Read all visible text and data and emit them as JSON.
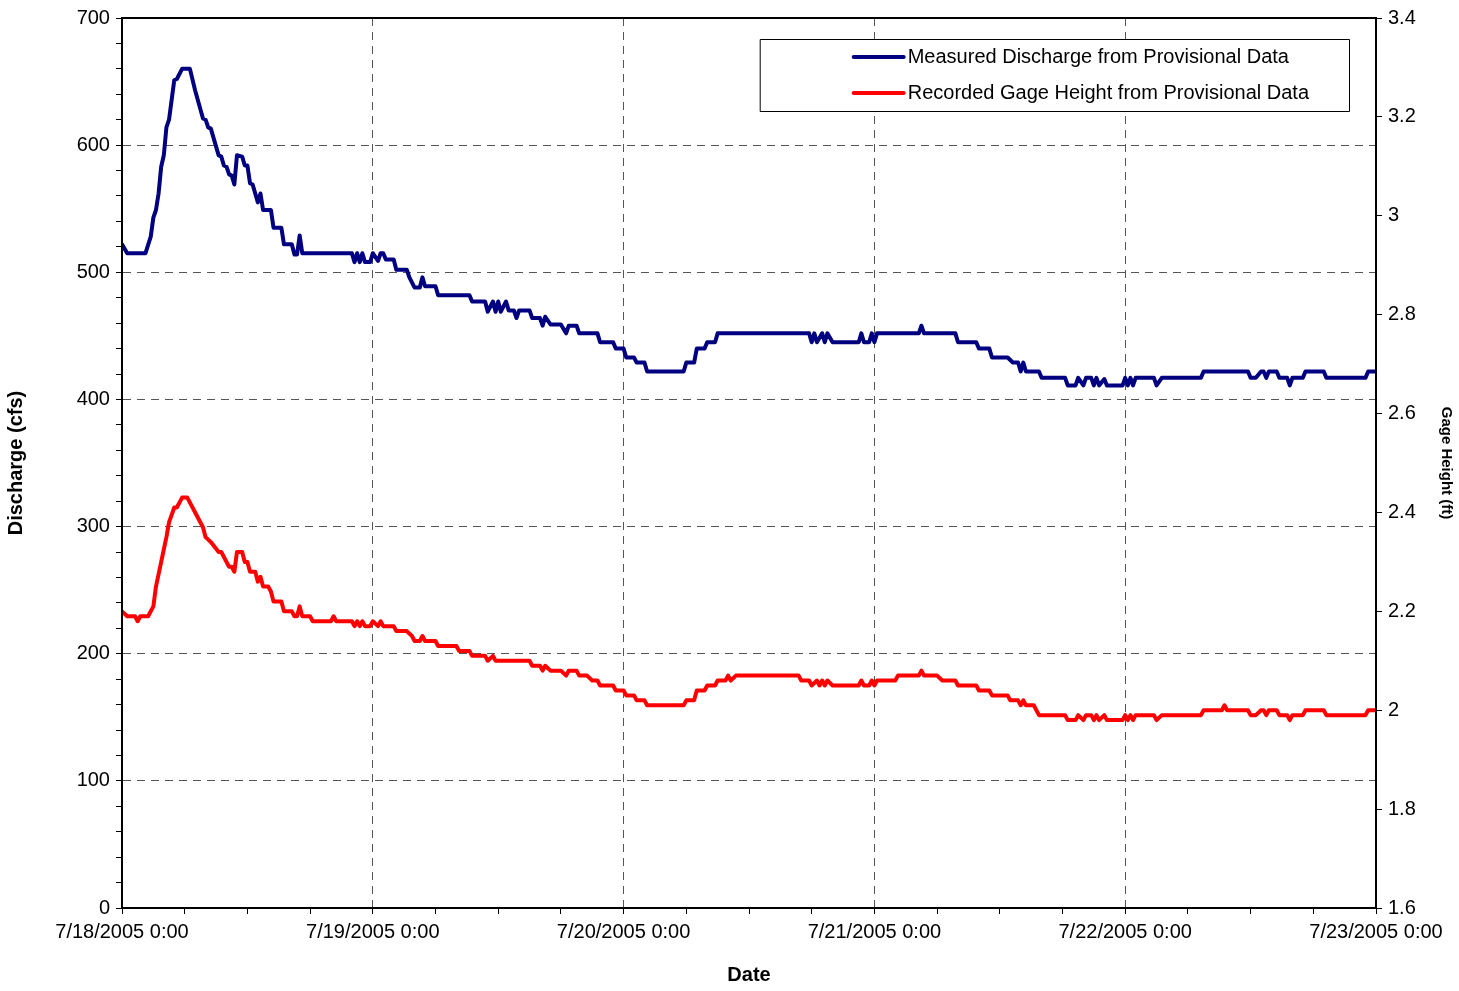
{
  "chart_data": {
    "type": "line",
    "xlabel": "Date",
    "ylabel": "Discharge (cfs)",
    "y2label": "Gage Height (ft)",
    "legend": "top right",
    "grid": true,
    "marker": "none",
    "line_style": "solid",
    "xlim": [
      "2005-07-18T00:00",
      "2005-07-23T00:00"
    ],
    "xticks": [
      {
        "value": "2005-07-18T00:00",
        "label": "7/18/2005 0:00"
      },
      {
        "value": "2005-07-18T06:00",
        "label": null
      },
      {
        "value": "2005-07-18T12:00",
        "label": null
      },
      {
        "value": "2005-07-18T18:00",
        "label": null
      },
      {
        "value": "2005-07-19T00:00",
        "label": "7/19/2005 0:00"
      },
      {
        "value": "2005-07-19T06:00",
        "label": null
      },
      {
        "value": "2005-07-19T12:00",
        "label": null
      },
      {
        "value": "2005-07-19T18:00",
        "label": null
      },
      {
        "value": "2005-07-20T00:00",
        "label": "7/20/2005 0:00"
      },
      {
        "value": "2005-07-20T06:00",
        "label": null
      },
      {
        "value": "2005-07-20T12:00",
        "label": null
      },
      {
        "value": "2005-07-20T18:00",
        "label": null
      },
      {
        "value": "2005-07-21T00:00",
        "label": "7/21/2005 0:00"
      },
      {
        "value": "2005-07-21T06:00",
        "label": null
      },
      {
        "value": "2005-07-21T12:00",
        "label": null
      },
      {
        "value": "2005-07-21T18:00",
        "label": null
      },
      {
        "value": "2005-07-22T00:00",
        "label": "7/22/2005 0:00"
      },
      {
        "value": "2005-07-22T06:00",
        "label": null
      },
      {
        "value": "2005-07-22T12:00",
        "label": null
      },
      {
        "value": "2005-07-22T18:00",
        "label": null
      },
      {
        "value": "2005-07-23T00:00",
        "label": "7/23/2005 0:00"
      }
    ],
    "ylim": [
      0,
      700
    ],
    "yticks": [
      0,
      {
        "value": 20,
        "label": null
      },
      {
        "value": 40,
        "label": null
      },
      {
        "value": 60,
        "label": null
      },
      {
        "value": 80,
        "label": null
      },
      100,
      {
        "value": 120,
        "label": null
      },
      {
        "value": 140,
        "label": null
      },
      {
        "value": 160,
        "label": null
      },
      {
        "value": 180,
        "label": null
      },
      200,
      {
        "value": 220,
        "label": null
      },
      {
        "value": 240,
        "label": null
      },
      {
        "value": 260,
        "label": null
      },
      {
        "value": 280,
        "label": null
      },
      300,
      {
        "value": 320,
        "label": null
      },
      {
        "value": 340,
        "label": null
      },
      {
        "value": 360,
        "label": null
      },
      {
        "value": 380,
        "label": null
      },
      400,
      {
        "value": 420,
        "label": null
      },
      {
        "value": 440,
        "label": null
      },
      {
        "value": 460,
        "label": null
      },
      {
        "value": 480,
        "label": null
      },
      500,
      {
        "value": 520,
        "label": null
      },
      {
        "value": 540,
        "label": null
      },
      {
        "value": 560,
        "label": null
      },
      {
        "value": 580,
        "label": null
      },
      600,
      {
        "value": 620,
        "label": null
      },
      {
        "value": 640,
        "label": null
      },
      {
        "value": 660,
        "label": null
      },
      {
        "value": 680,
        "label": null
      },
      700
    ],
    "y2lim": [
      1.6,
      3.4
    ],
    "y2ticks": [
      1.6,
      1.8,
      2,
      2.2,
      2.4,
      2.6,
      2.8,
      3,
      3.2,
      3.4
    ],
    "series": [
      {
        "name": "Measured Discharge from Provisional Data",
        "color": "#000080",
        "x": [
          "2005-07-18T00:00",
          "2005-07-18T00:30",
          "2005-07-18T02:15",
          "2005-07-18T02:45",
          "2005-07-18T03:00",
          "2005-07-18T03:15",
          "2005-07-18T03:30",
          "2005-07-18T03:45",
          "2005-07-18T04:00",
          "2005-07-18T04:15",
          "2005-07-18T04:30",
          "2005-07-18T05:00",
          "2005-07-18T05:15",
          "2005-07-18T05:45",
          "2005-07-18T06:30",
          "2005-07-18T07:00",
          "2005-07-18T07:45",
          "2005-07-18T08:00",
          "2005-07-18T08:15",
          "2005-07-18T08:30",
          "2005-07-18T09:15",
          "2005-07-18T09:30",
          "2005-07-18T09:45",
          "2005-07-18T10:00",
          "2005-07-18T10:15",
          "2005-07-18T10:30",
          "2005-07-18T10:45",
          "2005-07-18T11:00",
          "2005-07-18T11:30",
          "2005-07-18T11:45",
          "2005-07-18T12:00",
          "2005-07-18T12:15",
          "2005-07-18T12:30",
          "2005-07-18T13:00",
          "2005-07-18T13:15",
          "2005-07-18T13:30",
          "2005-07-18T14:15",
          "2005-07-18T14:30",
          "2005-07-18T15:15",
          "2005-07-18T15:30",
          "2005-07-18T16:15",
          "2005-07-18T16:30",
          "2005-07-18T16:45",
          "2005-07-18T17:00",
          "2005-07-18T17:15",
          "2005-07-18T22:00",
          "2005-07-18T22:15",
          "2005-07-18T22:30",
          "2005-07-18T22:45",
          "2005-07-18T23:00",
          "2005-07-18T23:15",
          "2005-07-18T23:45",
          "2005-07-19T00:00",
          "2005-07-19T00:30",
          "2005-07-19T00:45",
          "2005-07-19T01:00",
          "2005-07-19T01:15",
          "2005-07-19T02:00",
          "2005-07-19T02:15",
          "2005-07-19T03:15",
          "2005-07-19T03:30",
          "2005-07-19T04:00",
          "2005-07-19T04:30",
          "2005-07-19T04:45",
          "2005-07-19T05:00",
          "2005-07-19T06:00",
          "2005-07-19T06:15",
          "2005-07-19T09:15",
          "2005-07-19T09:30",
          "2005-07-19T10:45",
          "2005-07-19T11:00",
          "2005-07-19T11:30",
          "2005-07-19T11:45",
          "2005-07-19T12:00",
          "2005-07-19T12:15",
          "2005-07-19T12:45",
          "2005-07-19T13:00",
          "2005-07-19T13:30",
          "2005-07-19T13:45",
          "2005-07-19T14:00",
          "2005-07-19T15:00",
          "2005-07-19T15:15",
          "2005-07-19T16:00",
          "2005-07-19T16:15",
          "2005-07-19T16:30",
          "2005-07-19T17:00",
          "2005-07-19T18:00",
          "2005-07-19T18:30",
          "2005-07-19T18:45",
          "2005-07-19T19:30",
          "2005-07-19T19:45",
          "2005-07-19T21:30",
          "2005-07-19T21:45",
          "2005-07-19T23:00",
          "2005-07-19T23:15",
          "2005-07-20T00:00",
          "2005-07-20T00:15",
          "2005-07-20T01:00",
          "2005-07-20T01:15",
          "2005-07-20T02:00",
          "2005-07-20T02:15",
          "2005-07-20T05:45",
          "2005-07-20T06:00",
          "2005-07-20T06:45",
          "2005-07-20T07:00",
          "2005-07-20T07:45",
          "2005-07-20T08:00",
          "2005-07-20T08:45",
          "2005-07-20T09:00",
          "2005-07-20T17:45",
          "2005-07-20T18:00",
          "2005-07-20T18:15",
          "2005-07-20T18:30",
          "2005-07-20T19:00",
          "2005-07-20T19:15",
          "2005-07-20T19:30",
          "2005-07-20T20:00",
          "2005-07-20T22:30",
          "2005-07-20T22:45",
          "2005-07-20T23:00",
          "2005-07-20T23:30",
          "2005-07-20T23:45",
          "2005-07-21T00:00",
          "2005-07-21T00:15",
          "2005-07-21T04:15",
          "2005-07-21T04:30",
          "2005-07-21T04:45",
          "2005-07-21T07:45",
          "2005-07-21T08:00",
          "2005-07-21T09:45",
          "2005-07-21T10:00",
          "2005-07-21T11:00",
          "2005-07-21T11:15",
          "2005-07-21T12:45",
          "2005-07-21T13:15",
          "2005-07-21T13:45",
          "2005-07-21T14:00",
          "2005-07-21T14:15",
          "2005-07-21T14:30",
          "2005-07-21T15:45",
          "2005-07-21T16:00",
          "2005-07-21T18:15",
          "2005-07-21T18:30",
          "2005-07-21T19:15",
          "2005-07-21T19:30",
          "2005-07-21T20:00",
          "2005-07-21T20:15",
          "2005-07-21T20:45",
          "2005-07-21T21:00",
          "2005-07-21T21:15",
          "2005-07-21T21:30",
          "2005-07-21T22:00",
          "2005-07-21T22:15",
          "2005-07-21T23:45",
          "2005-07-22T00:00",
          "2005-07-22T00:15",
          "2005-07-22T00:30",
          "2005-07-22T00:45",
          "2005-07-22T01:00",
          "2005-07-22T02:45",
          "2005-07-22T03:00",
          "2005-07-22T03:30",
          "2005-07-22T07:15",
          "2005-07-22T07:30",
          "2005-07-22T11:45",
          "2005-07-22T12:00",
          "2005-07-22T12:30",
          "2005-07-22T13:00",
          "2005-07-22T13:15",
          "2005-07-22T13:30",
          "2005-07-22T13:45",
          "2005-07-22T14:30",
          "2005-07-22T14:45",
          "2005-07-22T15:30",
          "2005-07-22T15:45",
          "2005-07-22T16:00",
          "2005-07-22T17:00",
          "2005-07-22T17:15",
          "2005-07-22T19:00",
          "2005-07-22T19:15",
          "2005-07-22T23:00",
          "2005-07-22T23:15",
          "2005-07-23T00:00"
        ],
        "values": [
          522,
          515,
          515,
          528,
          543,
          549,
          562,
          583,
          592,
          614,
          620,
          651,
          652,
          660,
          660,
          643,
          621,
          620,
          614,
          613,
          592,
          591,
          584,
          583,
          577,
          576,
          569,
          592,
          591,
          584,
          584,
          570,
          569,
          555,
          562,
          549,
          549,
          535,
          535,
          522,
          522,
          514,
          514,
          529,
          515,
          515,
          508,
          515,
          508,
          515,
          508,
          508,
          515,
          509,
          515,
          515,
          510,
          510,
          502,
          502,
          496,
          488,
          488,
          496,
          489,
          489,
          482,
          482,
          477,
          477,
          469,
          477,
          469,
          477,
          469,
          477,
          470,
          470,
          464,
          470,
          470,
          464,
          464,
          458,
          465,
          459,
          459,
          452,
          458,
          458,
          452,
          452,
          445,
          445,
          440,
          440,
          433,
          433,
          429,
          429,
          422,
          422,
          429,
          429,
          440,
          440,
          445,
          445,
          452,
          452,
          445,
          452,
          445,
          452,
          445,
          452,
          445,
          445,
          452,
          445,
          445,
          452,
          445,
          452,
          452,
          458,
          452,
          452,
          445,
          445,
          440,
          440,
          433,
          433,
          429,
          429,
          422,
          429,
          422,
          422,
          417,
          417,
          411,
          411,
          417,
          411,
          417,
          417,
          411,
          417,
          411,
          416,
          411,
          411,
          417,
          411,
          417,
          411,
          417,
          417,
          411,
          417,
          417,
          422,
          422,
          417,
          417,
          422,
          422,
          417,
          422,
          422,
          417,
          417,
          411,
          417,
          417,
          422,
          422,
          417,
          417,
          422,
          422
        ]
      },
      {
        "name": "Recorded Gage Height from Provisional Data",
        "color": "#ff0000",
        "axis": "y2",
        "x": [
          "2005-07-18T00:00",
          "2005-07-18T00:30",
          "2005-07-18T01:15",
          "2005-07-18T01:30",
          "2005-07-18T01:45",
          "2005-07-18T02:30",
          "2005-07-18T03:00",
          "2005-07-18T03:15",
          "2005-07-18T03:45",
          "2005-07-18T04:15",
          "2005-07-18T04:30",
          "2005-07-18T05:00",
          "2005-07-18T05:15",
          "2005-07-18T05:45",
          "2005-07-18T06:15",
          "2005-07-18T07:00",
          "2005-07-18T07:45",
          "2005-07-18T08:00",
          "2005-07-18T08:30",
          "2005-07-18T09:15",
          "2005-07-18T09:30",
          "2005-07-18T10:15",
          "2005-07-18T10:30",
          "2005-07-18T10:45",
          "2005-07-18T11:00",
          "2005-07-18T11:30",
          "2005-07-18T11:45",
          "2005-07-18T12:00",
          "2005-07-18T12:15",
          "2005-07-18T12:45",
          "2005-07-18T13:00",
          "2005-07-18T13:15",
          "2005-07-18T13:30",
          "2005-07-18T14:00",
          "2005-07-18T14:15",
          "2005-07-18T14:30",
          "2005-07-18T15:15",
          "2005-07-18T15:30",
          "2005-07-18T16:15",
          "2005-07-18T16:30",
          "2005-07-18T16:45",
          "2005-07-18T17:00",
          "2005-07-18T17:15",
          "2005-07-18T18:00",
          "2005-07-18T18:15",
          "2005-07-18T20:00",
          "2005-07-18T20:15",
          "2005-07-18T20:30",
          "2005-07-18T22:00",
          "2005-07-18T22:15",
          "2005-07-18T22:30",
          "2005-07-18T22:45",
          "2005-07-18T23:00",
          "2005-07-18T23:15",
          "2005-07-18T23:45",
          "2005-07-19T00:00",
          "2005-07-19T00:30",
          "2005-07-19T00:45",
          "2005-07-19T01:00",
          "2005-07-19T02:00",
          "2005-07-19T02:15",
          "2005-07-19T03:15",
          "2005-07-19T03:45",
          "2005-07-19T04:00",
          "2005-07-19T04:30",
          "2005-07-19T04:45",
          "2005-07-19T05:00",
          "2005-07-19T06:00",
          "2005-07-19T06:15",
          "2005-07-19T08:00",
          "2005-07-19T08:15",
          "2005-07-19T09:15",
          "2005-07-19T09:30",
          "2005-07-19T10:45",
          "2005-07-19T11:00",
          "2005-07-19T11:30",
          "2005-07-19T11:45",
          "2005-07-19T14:00",
          "2005-07-19T15:00",
          "2005-07-19T15:15",
          "2005-07-19T16:00",
          "2005-07-19T16:15",
          "2005-07-19T16:30",
          "2005-07-19T17:00",
          "2005-07-19T18:00",
          "2005-07-19T18:30",
          "2005-07-19T18:45",
          "2005-07-19T19:30",
          "2005-07-19T19:45",
          "2005-07-19T20:30",
          "2005-07-19T21:00",
          "2005-07-19T21:30",
          "2005-07-19T21:45",
          "2005-07-19T23:00",
          "2005-07-19T23:15",
          "2005-07-20T00:00",
          "2005-07-20T00:15",
          "2005-07-20T01:00",
          "2005-07-20T01:15",
          "2005-07-20T02:00",
          "2005-07-20T02:15",
          "2005-07-20T05:45",
          "2005-07-20T06:00",
          "2005-07-20T06:45",
          "2005-07-20T07:00",
          "2005-07-20T07:45",
          "2005-07-20T08:00",
          "2005-07-20T08:45",
          "2005-07-20T09:00",
          "2005-07-20T09:45",
          "2005-07-20T10:00",
          "2005-07-20T10:15",
          "2005-07-20T10:45",
          "2005-07-20T16:45",
          "2005-07-20T17:00",
          "2005-07-20T17:45",
          "2005-07-20T18:00",
          "2005-07-20T18:30",
          "2005-07-20T18:45",
          "2005-07-20T19:00",
          "2005-07-20T19:15",
          "2005-07-20T19:30",
          "2005-07-20T20:00",
          "2005-07-20T22:30",
          "2005-07-20T22:45",
          "2005-07-20T23:00",
          "2005-07-20T23:30",
          "2005-07-20T23:45",
          "2005-07-21T00:00",
          "2005-07-21T00:15",
          "2005-07-21T02:00",
          "2005-07-21T02:15",
          "2005-07-21T04:15",
          "2005-07-21T04:30",
          "2005-07-21T04:45",
          "2005-07-21T06:00",
          "2005-07-21T06:30",
          "2005-07-21T07:45",
          "2005-07-21T08:00",
          "2005-07-21T09:45",
          "2005-07-21T10:00",
          "2005-07-21T11:00",
          "2005-07-21T11:15",
          "2005-07-21T12:45",
          "2005-07-21T13:00",
          "2005-07-21T13:45",
          "2005-07-21T14:00",
          "2005-07-21T14:15",
          "2005-07-21T14:30",
          "2005-07-21T15:15",
          "2005-07-21T15:45",
          "2005-07-21T18:15",
          "2005-07-21T18:30",
          "2005-07-21T19:15",
          "2005-07-21T19:30",
          "2005-07-21T20:00",
          "2005-07-21T20:15",
          "2005-07-21T20:45",
          "2005-07-21T21:00",
          "2005-07-21T21:15",
          "2005-07-21T21:30",
          "2005-07-21T22:00",
          "2005-07-21T22:15",
          "2005-07-21T23:45",
          "2005-07-22T00:00",
          "2005-07-22T00:15",
          "2005-07-22T00:30",
          "2005-07-22T00:45",
          "2005-07-22T01:00",
          "2005-07-22T02:45",
          "2005-07-22T03:00",
          "2005-07-22T03:30",
          "2005-07-22T07:15",
          "2005-07-22T07:30",
          "2005-07-22T09:15",
          "2005-07-22T09:30",
          "2005-07-22T09:45",
          "2005-07-22T11:45",
          "2005-07-22T12:00",
          "2005-07-22T12:30",
          "2005-07-22T13:00",
          "2005-07-22T13:15",
          "2005-07-22T13:30",
          "2005-07-22T13:45",
          "2005-07-22T14:30",
          "2005-07-22T14:45",
          "2005-07-22T15:30",
          "2005-07-22T15:45",
          "2005-07-22T16:00",
          "2005-07-22T17:00",
          "2005-07-22T17:15",
          "2005-07-22T19:00",
          "2005-07-22T19:15",
          "2005-07-22T23:00",
          "2005-07-22T23:15",
          "2005-07-23T00:00"
        ],
        "values": [
          2.2,
          2.19,
          2.19,
          2.18,
          2.19,
          2.19,
          2.21,
          2.25,
          2.3,
          2.35,
          2.38,
          2.41,
          2.41,
          2.43,
          2.43,
          2.4,
          2.37,
          2.35,
          2.34,
          2.32,
          2.32,
          2.29,
          2.29,
          2.28,
          2.32,
          2.32,
          2.3,
          2.3,
          2.28,
          2.28,
          2.26,
          2.27,
          2.25,
          2.25,
          2.24,
          2.22,
          2.22,
          2.2,
          2.2,
          2.19,
          2.19,
          2.21,
          2.19,
          2.19,
          2.18,
          2.18,
          2.19,
          2.18,
          2.18,
          2.17,
          2.18,
          2.17,
          2.18,
          2.17,
          2.17,
          2.18,
          2.17,
          2.18,
          2.17,
          2.17,
          2.16,
          2.16,
          2.15,
          2.14,
          2.14,
          2.15,
          2.14,
          2.14,
          2.13,
          2.13,
          2.12,
          2.12,
          2.11,
          2.11,
          2.1,
          2.11,
          2.1,
          2.1,
          2.1,
          2.09,
          2.09,
          2.08,
          2.09,
          2.08,
          2.08,
          2.07,
          2.08,
          2.08,
          2.07,
          2.07,
          2.06,
          2.06,
          2.05,
          2.05,
          2.04,
          2.04,
          2.03,
          2.03,
          2.02,
          2.02,
          2.01,
          2.01,
          2.02,
          2.02,
          2.04,
          2.04,
          2.05,
          2.05,
          2.06,
          2.06,
          2.07,
          2.06,
          2.07,
          2.07,
          2.06,
          2.06,
          2.05,
          2.06,
          2.05,
          2.06,
          2.05,
          2.06,
          2.05,
          2.05,
          2.06,
          2.05,
          2.05,
          2.06,
          2.05,
          2.06,
          2.06,
          2.07,
          2.07,
          2.08,
          2.07,
          2.07,
          2.06,
          2.06,
          2.05,
          2.05,
          2.04,
          2.04,
          2.03,
          2.03,
          2.02,
          2.02,
          2.01,
          2.02,
          2.01,
          2.01,
          1.99,
          1.99,
          1.98,
          1.98,
          1.99,
          1.98,
          1.99,
          1.99,
          1.98,
          1.99,
          1.98,
          1.99,
          1.98,
          1.98,
          1.99,
          1.98,
          1.99,
          1.98,
          1.99,
          1.99,
          1.98,
          1.99,
          1.99,
          2,
          2,
          2.01,
          2,
          2,
          1.99,
          1.99,
          2,
          2,
          1.99,
          2,
          2,
          1.99,
          1.99,
          1.98,
          1.99,
          1.99,
          2,
          2,
          1.99,
          1.99,
          2,
          2
        ]
      }
    ]
  }
}
